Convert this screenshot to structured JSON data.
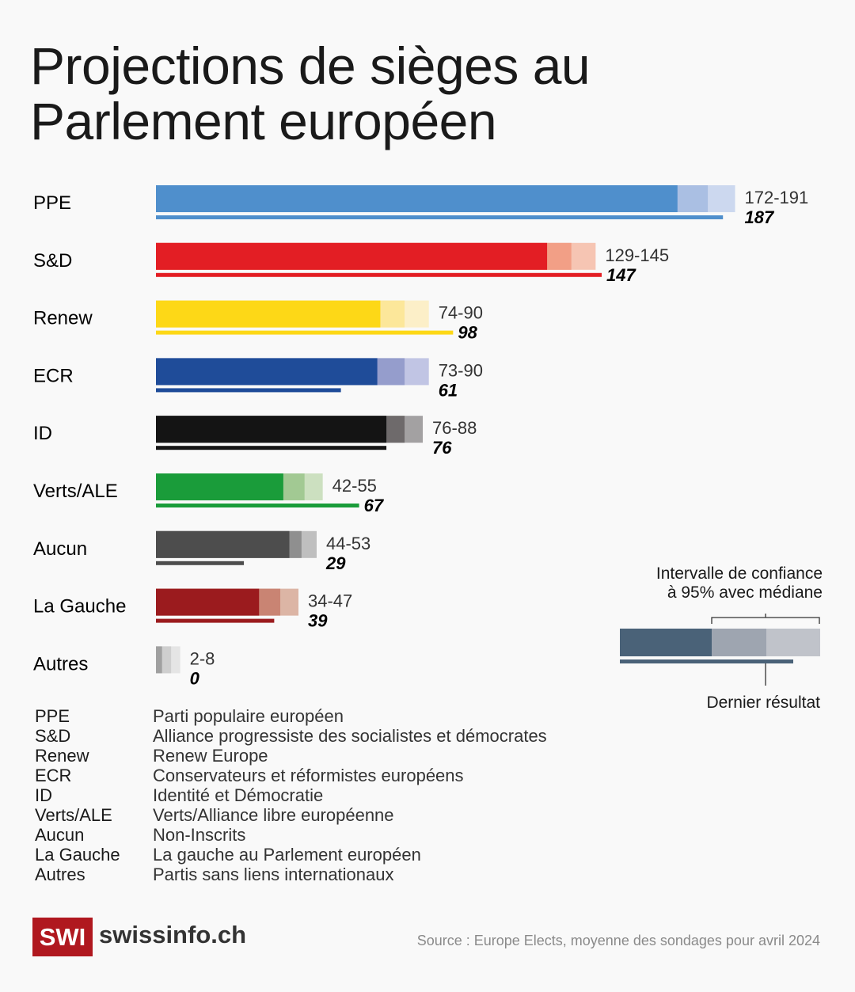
{
  "title": "Projections de sièges au Parlement européen",
  "chart_data": {
    "type": "bar",
    "title": "Projections de sièges au Parlement européen",
    "categories": [
      "PPE",
      "S&D",
      "Renew",
      "ECR",
      "ID",
      "Verts/ALE",
      "Aucun",
      "La Gauche",
      "Autres"
    ],
    "series": [
      {
        "name": "low",
        "values": [
          172,
          129,
          74,
          73,
          76,
          42,
          44,
          34,
          2
        ]
      },
      {
        "name": "median",
        "values": [
          182,
          137,
          82,
          82,
          82,
          49,
          48,
          41,
          5
        ]
      },
      {
        "name": "high",
        "values": [
          191,
          145,
          90,
          90,
          88,
          55,
          53,
          47,
          8
        ]
      },
      {
        "name": "Dernier résultat",
        "values": [
          187,
          147,
          98,
          61,
          76,
          67,
          29,
          39,
          0
        ]
      }
    ],
    "range_labels": [
      "172-191",
      "129-145",
      "74-90",
      "73-90",
      "76-88",
      "42-55",
      "44-53",
      "34-47",
      "2-8"
    ],
    "last_labels": [
      "187",
      "147",
      "98",
      "61",
      "76",
      "67",
      "29",
      "39",
      "0"
    ],
    "colors": [
      [
        "#4f8fcc",
        "#aabfe3",
        "#ccd8ef"
      ],
      [
        "#e31e24",
        "#f29f86",
        "#f6c5b3"
      ],
      [
        "#fdd817",
        "#fce79a",
        "#fcefc8"
      ],
      [
        "#1f4c99",
        "#959dcc",
        "#c1c5e4"
      ],
      [
        "#141414",
        "#6e6a6b",
        "#a3a1a2"
      ],
      [
        "#1a9c3a",
        "#a2c993",
        "#cce0c0"
      ],
      [
        "#4d4d4d",
        "#8f8f8f",
        "#bfbfbf"
      ],
      [
        "#9b1b1e",
        "#c98473",
        "#dcb5a5"
      ],
      [
        "#a0a0a0",
        "#cfcfcf",
        "#e5e5e5"
      ]
    ],
    "xlim": [
      0,
      191
    ]
  },
  "legend": {
    "ci": "Intervalle de confiance",
    "ci2": "à 95% avec médiane",
    "last": "Dernier résultat"
  },
  "glossary": [
    {
      "abbr": "PPE",
      "full": "Parti populaire européen"
    },
    {
      "abbr": "S&D",
      "full": "Alliance progressiste des socialistes et démocrates"
    },
    {
      "abbr": "Renew",
      "full": "Renew Europe"
    },
    {
      "abbr": "ECR",
      "full": "Conservateurs et réformistes européens"
    },
    {
      "abbr": "ID",
      "full": "Identité et Démocratie"
    },
    {
      "abbr": "Verts/ALE",
      "full": "Verts/Alliance libre européenne"
    },
    {
      "abbr": "Aucun",
      "full": "Non-Inscrits"
    },
    {
      "abbr": "La Gauche",
      "full": "La gauche au Parlement européen"
    },
    {
      "abbr": "Autres",
      "full": "Partis sans liens internationaux"
    }
  ],
  "source": "Source : Europe Elects, moyenne des sondages pour avril 2024",
  "logo": {
    "badge": "SWI",
    "text": "swissinfo.ch"
  }
}
